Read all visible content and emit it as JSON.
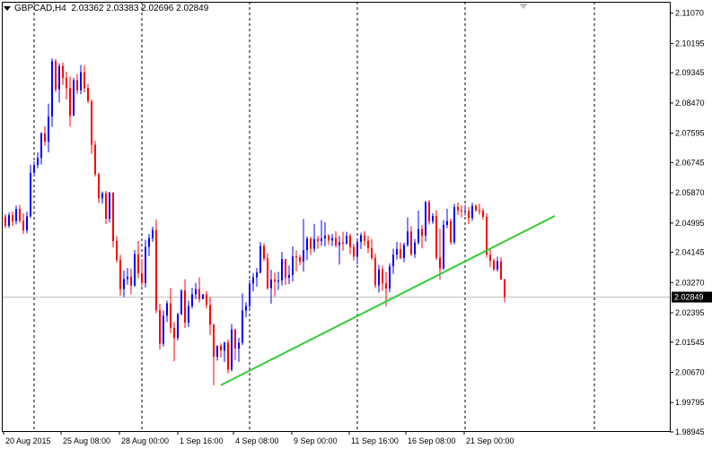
{
  "window": {
    "symbol_timeframe": "GBPCAD,H4",
    "ohlc": "2.03362 2.03383 2.02696 2.02849"
  },
  "chart_data": {
    "type": "candlestick",
    "symbol": "GBPCAD",
    "timeframe": "H4",
    "title": "GBPCAD,H4  2.03362 2.03383 2.02696 2.02849",
    "ylim": [
      1.9897,
      2.114
    ],
    "y_ticks": [
      "2.11070",
      "2.10195",
      "2.09345",
      "2.08470",
      "2.07595",
      "2.06745",
      "2.05870",
      "2.04995",
      "2.04145",
      "2.03270",
      "2.02395",
      "2.01545",
      "2.00670",
      "1.99795",
      "1.98945"
    ],
    "x_ticks": [
      "20 Aug 2015",
      "25 Aug 08:00",
      "28 Aug 00:00",
      "1 Sep 16:00",
      "4 Sep 08:00",
      "9 Sep 00:00",
      "11 Sep 16:00",
      "16 Sep 08:00",
      "21 Sep 00:00"
    ],
    "current_price": "2.02849",
    "colors": {
      "bull": "#0000ff",
      "bear": "#ff0000",
      "trendline": "#33cc33",
      "grid": "#000000",
      "price_line": "#c0c0c0"
    },
    "trendline": {
      "from_index": 60,
      "from_price": 2.003,
      "to_index": 153,
      "to_price": 2.052
    },
    "candles": [
      [
        2.0518,
        2.0525,
        2.0484,
        2.0492
      ],
      [
        2.0492,
        2.053,
        2.0485,
        2.0522
      ],
      [
        2.0522,
        2.0533,
        2.0491,
        2.0505
      ],
      [
        2.0505,
        2.055,
        2.0495,
        2.054
      ],
      [
        2.054,
        2.0552,
        2.05,
        2.0506
      ],
      [
        2.0506,
        2.0528,
        2.0468,
        2.0478
      ],
      [
        2.0478,
        2.0532,
        2.047,
        2.0519
      ],
      [
        2.0519,
        2.0668,
        2.0514,
        2.0645
      ],
      [
        2.0645,
        2.0678,
        2.0635,
        2.0667
      ],
      [
        2.0667,
        2.0704,
        2.0658,
        2.0688
      ],
      [
        2.0688,
        2.0762,
        2.0669,
        2.0759
      ],
      [
        2.0759,
        2.078,
        2.0723,
        2.0735
      ],
      [
        2.0735,
        2.0845,
        2.0704,
        2.0808
      ],
      [
        2.0808,
        2.0976,
        2.0778,
        2.0968
      ],
      [
        2.0968,
        2.0975,
        2.0879,
        2.0887
      ],
      [
        2.0887,
        2.0962,
        2.0848,
        2.0954
      ],
      [
        2.0954,
        2.0964,
        2.0899,
        2.092
      ],
      [
        2.092,
        2.0938,
        2.0857,
        2.089
      ],
      [
        2.089,
        2.0924,
        2.0779,
        2.081
      ],
      [
        2.081,
        2.092,
        2.081,
        2.0913
      ],
      [
        2.0913,
        2.0931,
        2.0873,
        2.0884
      ],
      [
        2.0884,
        2.0957,
        2.0872,
        2.0936
      ],
      [
        2.0936,
        2.0955,
        2.0878,
        2.089
      ],
      [
        2.089,
        2.0902,
        2.0846,
        2.0852
      ],
      [
        2.0852,
        2.0857,
        2.07,
        2.0726
      ],
      [
        2.0726,
        2.0737,
        2.0634,
        2.0641
      ],
      [
        2.0641,
        2.0645,
        2.0557,
        2.0571
      ],
      [
        2.0571,
        2.0591,
        2.0556,
        2.0585
      ],
      [
        2.0585,
        2.0592,
        2.0496,
        2.0512
      ],
      [
        2.0512,
        2.059,
        2.0501,
        2.0587
      ],
      [
        2.0587,
        2.0589,
        2.0429,
        2.0447
      ],
      [
        2.0447,
        2.0461,
        2.0384,
        2.0393
      ],
      [
        2.0393,
        2.0407,
        2.0289,
        2.0308
      ],
      [
        2.0308,
        2.0362,
        2.0285,
        2.0337
      ],
      [
        2.0337,
        2.0369,
        2.0321,
        2.0344
      ],
      [
        2.0344,
        2.0368,
        2.0293,
        2.0318
      ],
      [
        2.0318,
        2.0421,
        2.0315,
        2.0409
      ],
      [
        2.0409,
        2.0447,
        2.0339,
        2.0354
      ],
      [
        2.0354,
        2.0395,
        2.0317,
        2.0326
      ],
      [
        2.0326,
        2.0451,
        2.0313,
        2.043
      ],
      [
        2.043,
        2.0468,
        2.0404,
        2.0456
      ],
      [
        2.0456,
        2.0489,
        2.0445,
        2.0479
      ],
      [
        2.0479,
        2.051,
        2.0238,
        2.0247
      ],
      [
        2.0247,
        2.0266,
        2.0133,
        2.015
      ],
      [
        2.015,
        2.0246,
        2.0142,
        2.0231
      ],
      [
        2.0231,
        2.0275,
        2.0213,
        2.0267
      ],
      [
        2.0267,
        2.0311,
        2.018,
        2.0196
      ],
      [
        2.0196,
        2.0213,
        2.0099,
        2.0167
      ],
      [
        2.0167,
        2.024,
        2.0159,
        2.0235
      ],
      [
        2.0235,
        2.0307,
        2.0233,
        2.0304
      ],
      [
        2.0304,
        2.0337,
        2.0195,
        2.0211
      ],
      [
        2.0211,
        2.0275,
        2.0198,
        2.0259
      ],
      [
        2.0259,
        2.0312,
        2.0252,
        2.0293
      ],
      [
        2.0293,
        2.0326,
        2.0279,
        2.0308
      ],
      [
        2.0308,
        2.0342,
        2.0269,
        2.0279
      ],
      [
        2.0279,
        2.0293,
        2.0282,
        2.0293
      ],
      [
        2.0293,
        2.0303,
        2.0252,
        2.0262
      ],
      [
        2.0262,
        2.0285,
        2.0175,
        2.0205
      ],
      [
        2.0205,
        2.0208,
        2.003,
        2.0112
      ],
      [
        2.0112,
        2.0145,
        2.0101,
        2.0144
      ],
      [
        2.0144,
        2.0151,
        2.011,
        2.013
      ],
      [
        2.013,
        2.0156,
        2.0097,
        2.0153
      ],
      [
        2.0153,
        2.0162,
        2.0064,
        2.0075
      ],
      [
        2.0075,
        2.0207,
        2.007,
        2.0191
      ],
      [
        2.0191,
        2.0193,
        2.0102,
        2.0136
      ],
      [
        2.0136,
        2.0167,
        2.0097,
        2.0153
      ],
      [
        2.0153,
        2.0296,
        2.0146,
        2.0246
      ],
      [
        2.0246,
        2.027,
        2.0227,
        2.0259
      ],
      [
        2.0259,
        2.0335,
        2.0251,
        2.0324
      ],
      [
        2.0324,
        2.0355,
        2.0302,
        2.0342
      ],
      [
        2.0342,
        2.0369,
        2.0315,
        2.0356
      ],
      [
        2.0356,
        2.0445,
        2.0353,
        2.0433
      ],
      [
        2.0433,
        2.0441,
        2.0389,
        2.0397
      ],
      [
        2.0397,
        2.0411,
        2.0306,
        2.0311
      ],
      [
        2.0311,
        2.0364,
        2.0266,
        2.0336
      ],
      [
        2.0336,
        2.0356,
        2.0287,
        2.033
      ],
      [
        2.033,
        2.0358,
        2.0306,
        2.0333
      ],
      [
        2.0333,
        2.0416,
        2.0318,
        2.0395
      ],
      [
        2.0395,
        2.0395,
        2.032,
        2.0341
      ],
      [
        2.0341,
        2.0376,
        2.0323,
        2.0349
      ],
      [
        2.0349,
        2.0432,
        2.033,
        2.0403
      ],
      [
        2.0403,
        2.042,
        2.036,
        2.04
      ],
      [
        2.04,
        2.0407,
        2.0377,
        2.0388
      ],
      [
        2.0388,
        2.0511,
        2.0359,
        2.0421
      ],
      [
        2.0421,
        2.0461,
        2.0392,
        2.0454
      ],
      [
        2.0454,
        2.0459,
        2.0408,
        2.0425
      ],
      [
        2.0425,
        2.0497,
        2.0415,
        2.0453
      ],
      [
        2.0453,
        2.0462,
        2.0425,
        2.0447
      ],
      [
        2.0447,
        2.0508,
        2.0433,
        2.0455
      ],
      [
        2.0455,
        2.0502,
        2.0432,
        2.0463
      ],
      [
        2.0463,
        2.0467,
        2.0436,
        2.0449
      ],
      [
        2.0449,
        2.0468,
        2.0433,
        2.0456
      ],
      [
        2.0456,
        2.0476,
        2.0429,
        2.0435
      ],
      [
        2.0435,
        2.0462,
        2.0379,
        2.0443
      ],
      [
        2.0443,
        2.0474,
        2.0419,
        2.044
      ],
      [
        2.044,
        2.0474,
        2.0437,
        2.0462
      ],
      [
        2.0462,
        2.0469,
        2.0409,
        2.043
      ],
      [
        2.043,
        2.0439,
        2.0391,
        2.0402
      ],
      [
        2.0402,
        2.0454,
        2.038,
        2.0445
      ],
      [
        2.0445,
        2.0471,
        2.0424,
        2.0464
      ],
      [
        2.0464,
        2.0476,
        2.0433,
        2.0448
      ],
      [
        2.0448,
        2.0462,
        2.0412,
        2.0427
      ],
      [
        2.0427,
        2.0453,
        2.0393,
        2.0398
      ],
      [
        2.0398,
        2.041,
        2.0311,
        2.0319
      ],
      [
        2.0319,
        2.0378,
        2.0298,
        2.0365
      ],
      [
        2.0365,
        2.0376,
        2.0303,
        2.0325
      ],
      [
        2.0325,
        2.0358,
        2.0258,
        2.031
      ],
      [
        2.031,
        2.0383,
        2.0299,
        2.0374
      ],
      [
        2.0374,
        2.0425,
        2.0352,
        2.0408
      ],
      [
        2.0408,
        2.0445,
        2.0394,
        2.0424
      ],
      [
        2.0424,
        2.0443,
        2.0394,
        2.0398
      ],
      [
        2.0398,
        2.0443,
        2.0386,
        2.0436
      ],
      [
        2.0436,
        2.0516,
        2.0431,
        2.0475
      ],
      [
        2.0475,
        2.049,
        2.0404,
        2.0409
      ],
      [
        2.0409,
        2.0453,
        2.0398,
        2.0443
      ],
      [
        2.0443,
        2.0535,
        2.0437,
        2.0482
      ],
      [
        2.0482,
        2.0494,
        2.0426,
        2.0463
      ],
      [
        2.0463,
        2.0563,
        2.0446,
        2.056
      ],
      [
        2.056,
        2.0566,
        2.0495,
        2.0504
      ],
      [
        2.0504,
        2.0528,
        2.0497,
        2.052
      ],
      [
        2.052,
        2.0537,
        2.0392,
        2.0399
      ],
      [
        2.0399,
        2.0483,
        2.0335,
        2.0368
      ],
      [
        2.0368,
        2.0508,
        2.0364,
        2.0494
      ],
      [
        2.0494,
        2.0541,
        2.0485,
        2.0505
      ],
      [
        2.0505,
        2.0512,
        2.0436,
        2.0444
      ],
      [
        2.0444,
        2.0555,
        2.0438,
        2.0546
      ],
      [
        2.0546,
        2.0559,
        2.0523,
        2.0536
      ],
      [
        2.0536,
        2.055,
        2.0516,
        2.0534
      ],
      [
        2.0534,
        2.0552,
        2.0521,
        2.0534
      ],
      [
        2.0534,
        2.0546,
        2.0496,
        2.0514
      ],
      [
        2.0514,
        2.0558,
        2.0506,
        2.0549
      ],
      [
        2.0549,
        2.0554,
        2.0533,
        2.0536
      ],
      [
        2.0536,
        2.0555,
        2.0524,
        2.0535
      ],
      [
        2.0535,
        2.0542,
        2.0509,
        2.0517
      ],
      [
        2.0517,
        2.0528,
        2.0399,
        2.0408
      ],
      [
        2.0408,
        2.0423,
        2.0372,
        2.039
      ],
      [
        2.039,
        2.0397,
        2.0361,
        2.0365
      ],
      [
        2.0365,
        2.0402,
        2.0359,
        2.0389
      ],
      [
        2.0389,
        2.04,
        2.0335,
        2.0336
      ],
      [
        2.0336,
        2.0338,
        2.027,
        2.0285
      ]
    ]
  }
}
